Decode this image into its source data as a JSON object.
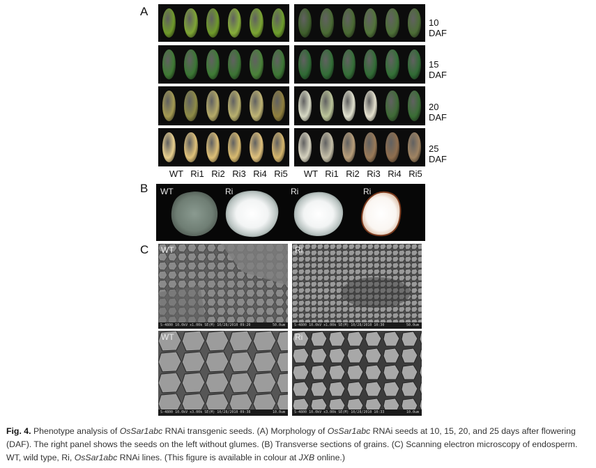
{
  "panels": {
    "a": "A",
    "b": "B",
    "c": "C"
  },
  "days": [
    "10 DAF",
    "15 DAF",
    "20 DAF",
    "25 DAF"
  ],
  "lines": [
    "WT",
    "Ri1",
    "Ri2",
    "Ri3",
    "Ri4",
    "Ri5"
  ],
  "b_labels": [
    "WT",
    "Ri",
    "Ri",
    "Ri"
  ],
  "sem": {
    "top_left": {
      "label": "WT",
      "info": "S-4800 10.0kV x1.00k SE(M) 10/28/2010 09:20",
      "scale": "50.0um"
    },
    "top_right": {
      "label": "Ri",
      "info": "S-4800 10.0kV x1.00k SE(M) 10/28/2010 10:30",
      "scale": "50.0um"
    },
    "bot_left": {
      "label": "WT",
      "info": "S-4800 10.0kV x3.00k SE(M) 10/28/2010 09:38",
      "scale": "10.0um"
    },
    "bot_right": {
      "label": "Ri",
      "info": "S-4800 10.0kV x3.00k SE(M) 10/28/2010 10:33",
      "scale": "10.0um"
    }
  },
  "caption": {
    "fig": "Fig. 4.",
    "t1": " Phenotype analysis of ",
    "gene1": "OsSar1abc",
    "t2": " RNAi transgenic seeds. (A) Morphology of ",
    "gene2": "OsSar1abc",
    "t3": " RNAi seeds at 10, 15, 20, and 25 days after flowering (DAF). The right panel shows the seeds on the left without glumes. (B) Transverse sections of grains. (C) Scanning electron microscopy of endosperm. WT, wild type, Ri, ",
    "gene3": "OsSar1abc",
    "t4": " RNAi lines. (This figure is available in colour at ",
    "journal": "JXB",
    "t5": " online.)"
  }
}
